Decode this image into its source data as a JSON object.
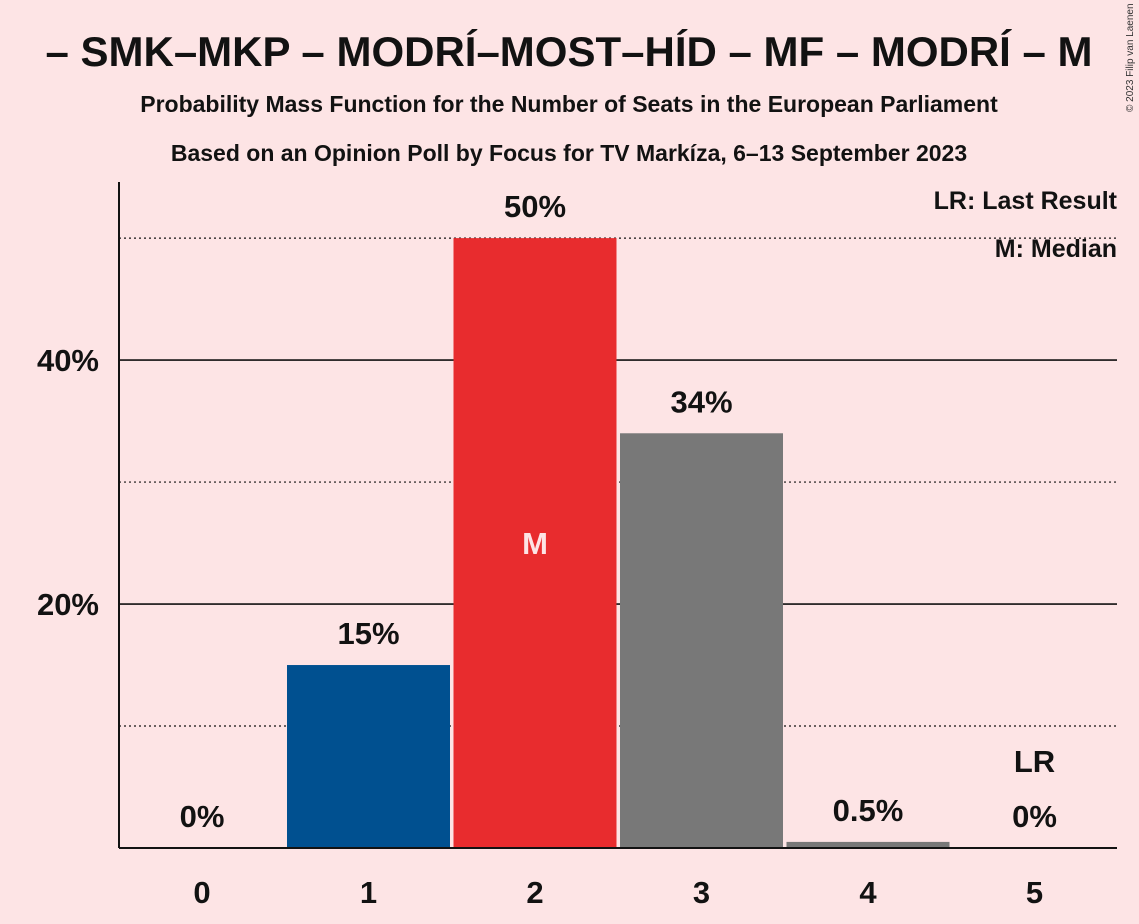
{
  "chart_data": {
    "type": "bar",
    "title": "– SMK–MKP – MODRÍ–MOST–HÍD – MF – MODRÍ – M",
    "subtitle1": "Probability Mass Function for the Number of Seats in the European Parliament",
    "subtitle2": "Based on an Opinion Poll by Focus for TV Markíza, 6–13 September 2023",
    "copyright": "© 2023 Filip van Laenen",
    "categories": [
      "0",
      "1",
      "2",
      "3",
      "4",
      "5"
    ],
    "values": [
      0,
      15,
      50,
      34,
      0.5,
      0
    ],
    "value_labels": [
      "0%",
      "15%",
      "50%",
      "34%",
      "0.5%",
      "0%"
    ],
    "bar_colors": [
      "#005090",
      "#005090",
      "#e82c2e",
      "#787878",
      "#787878",
      "#787878"
    ],
    "ylim": [
      0,
      54.6
    ],
    "yticks": [
      {
        "value": 20,
        "label": "20%"
      },
      {
        "value": 40,
        "label": "40%"
      }
    ],
    "minor_gridlines": [
      10,
      30,
      50
    ],
    "median_index": 2,
    "median_marker": "M",
    "last_result_index": 5,
    "last_result_marker": "LR",
    "legend": [
      "LR: Last Result",
      "M: Median"
    ],
    "xlabel": "",
    "ylabel": ""
  }
}
